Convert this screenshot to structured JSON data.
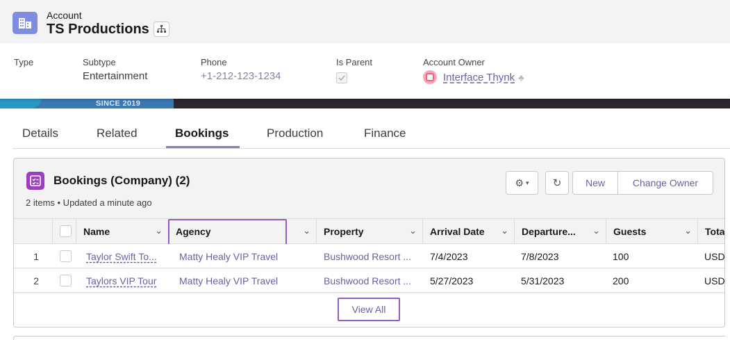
{
  "header": {
    "object_type": "Account",
    "account_name": "TS Productions",
    "account_icon": "building-icon",
    "hierarchy_icon": "hierarchy-icon"
  },
  "highlights": {
    "type_label": "Type",
    "type_value": "",
    "subtype_label": "Subtype",
    "subtype_value": "Entertainment",
    "phone_label": "Phone",
    "phone_value": "+1-212-123-1234",
    "is_parent_label": "Is Parent",
    "is_parent_checked": true,
    "owner_label": "Account Owner",
    "owner_name": "Interface Thynk"
  },
  "banner": {
    "text": "SINCE 2019"
  },
  "tabs": [
    {
      "label": "Details"
    },
    {
      "label": "Related"
    },
    {
      "label": "Bookings",
      "active": true
    },
    {
      "label": "Production"
    },
    {
      "label": "Finance"
    }
  ],
  "related_list": {
    "title": "Bookings (Company) (2)",
    "subtitle": "2 items • Updated a minute ago",
    "new_label": "New",
    "change_owner_label": "Change Owner",
    "view_all_label": "View All",
    "columns": [
      "Name",
      "Agency",
      "Property",
      "Arrival Date",
      "Departure...",
      "Guests",
      "Tota"
    ],
    "rows": [
      {
        "num": "1",
        "name": "Taylor Swift To...",
        "agency": "Matty Healy VIP Travel",
        "property": "Bushwood Resort ...",
        "arrival": "7/4/2023",
        "departure": "7/8/2023",
        "guests": "100",
        "total": "USD"
      },
      {
        "num": "2",
        "name": "Taylors VIP Tour",
        "agency": "Matty Healy VIP Travel",
        "property": "Bushwood Resort ...",
        "arrival": "5/27/2023",
        "departure": "5/31/2023",
        "guests": "200",
        "total": "USD"
      }
    ]
  },
  "colors": {
    "accent": "#6b5fa3",
    "highlight_box": "#9a5ac6",
    "account_icon_bg": "#7f8de1",
    "bookings_icon_bg": "#9b3fbf"
  }
}
